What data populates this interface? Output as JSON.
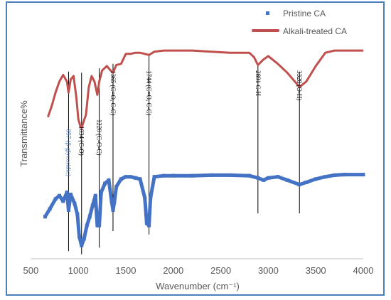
{
  "chart_data": {
    "type": "line",
    "title": "",
    "xlabel": "Wavenumber (cm⁻¹)",
    "ylabel": "Transmittance%",
    "xlim": [
      500,
      4000
    ],
    "x_ticks": [
      500,
      1000,
      1500,
      2000,
      2500,
      3000,
      3500,
      4000
    ],
    "y_ticks_shown": false,
    "grid": false,
    "legend": "top-right",
    "colors": {
      "frame": "#4a7ebb",
      "axis": "#bfbfbf",
      "annotation_line": "#000000"
    },
    "series": [
      {
        "name": "Pristine CA",
        "color": "#4472c4",
        "marker": "square",
        "points": [
          [
            650,
            38
          ],
          [
            700,
            45
          ],
          [
            760,
            54
          ],
          [
            800,
            57
          ],
          [
            840,
            52
          ],
          [
            880,
            60
          ],
          [
            897,
            44
          ],
          [
            920,
            58
          ],
          [
            960,
            50
          ],
          [
            990,
            40
          ],
          [
            1010,
            20
          ],
          [
            1034,
            12
          ],
          [
            1060,
            18
          ],
          [
            1090,
            30
          ],
          [
            1120,
            38
          ],
          [
            1150,
            48
          ],
          [
            1180,
            57
          ],
          [
            1200,
            30
          ],
          [
            1220,
            30
          ],
          [
            1240,
            60
          ],
          [
            1280,
            68
          ],
          [
            1320,
            71
          ],
          [
            1350,
            52
          ],
          [
            1365,
            44
          ],
          [
            1380,
            52
          ],
          [
            1400,
            65
          ],
          [
            1450,
            72
          ],
          [
            1500,
            74
          ],
          [
            1550,
            74
          ],
          [
            1600,
            73
          ],
          [
            1650,
            72
          ],
          [
            1700,
            55
          ],
          [
            1720,
            32
          ],
          [
            1744,
            30
          ],
          [
            1760,
            55
          ],
          [
            1800,
            74
          ],
          [
            1900,
            75
          ],
          [
            2000,
            75
          ],
          [
            2200,
            75
          ],
          [
            2400,
            75.5
          ],
          [
            2600,
            75.5
          ],
          [
            2800,
            75
          ],
          [
            2891,
            73
          ],
          [
            2950,
            71
          ],
          [
            3000,
            73
          ],
          [
            3100,
            74
          ],
          [
            3200,
            71
          ],
          [
            3328,
            67
          ],
          [
            3400,
            69
          ],
          [
            3500,
            72
          ],
          [
            3600,
            74
          ],
          [
            3700,
            75.5
          ],
          [
            3800,
            76
          ],
          [
            4000,
            76
          ]
        ]
      },
      {
        "name": "Alkali-treated CA",
        "color": "#c0504d",
        "marker": "none",
        "points": [
          [
            680,
            128
          ],
          [
            720,
            138
          ],
          [
            760,
            150
          ],
          [
            800,
            160
          ],
          [
            840,
            166
          ],
          [
            880,
            160
          ],
          [
            897,
            150
          ],
          [
            920,
            162
          ],
          [
            950,
            165
          ],
          [
            980,
            145
          ],
          [
            1000,
            126
          ],
          [
            1020,
            120
          ],
          [
            1034,
            118
          ],
          [
            1060,
            125
          ],
          [
            1080,
            130
          ],
          [
            1110,
            155
          ],
          [
            1140,
            165
          ],
          [
            1170,
            160
          ],
          [
            1200,
            148
          ],
          [
            1220,
            160
          ],
          [
            1250,
            170
          ],
          [
            1300,
            174
          ],
          [
            1340,
            170
          ],
          [
            1365,
            168
          ],
          [
            1400,
            175
          ],
          [
            1450,
            176
          ],
          [
            1500,
            185
          ],
          [
            1550,
            185
          ],
          [
            1600,
            186
          ],
          [
            1650,
            186
          ],
          [
            1700,
            185
          ],
          [
            1744,
            184
          ],
          [
            1800,
            187
          ],
          [
            1900,
            188
          ],
          [
            2000,
            188
          ],
          [
            2200,
            188
          ],
          [
            2400,
            187
          ],
          [
            2600,
            186
          ],
          [
            2800,
            186
          ],
          [
            2850,
            182
          ],
          [
            2891,
            175
          ],
          [
            2950,
            180
          ],
          [
            3000,
            183
          ],
          [
            3100,
            176
          ],
          [
            3200,
            168
          ],
          [
            3300,
            158
          ],
          [
            3328,
            155
          ],
          [
            3400,
            160
          ],
          [
            3500,
            174
          ],
          [
            3600,
            186
          ],
          [
            3700,
            188
          ],
          [
            3800,
            188
          ],
          [
            4000,
            188
          ]
        ]
      }
    ],
    "annotations": [
      {
        "x": 897,
        "label": "897 (β-glycosidic)",
        "color": "#4a7fc4",
        "line_top": 169,
        "line_bottom": 7,
        "text_at": 117
      },
      {
        "x": 1034,
        "label": "1034 (C-O)",
        "color": "#000000",
        "line_top": 168,
        "line_bottom": 4,
        "text_at": 120
      },
      {
        "x": 1220,
        "label": "1220 (C-O-C)",
        "color": "#000000",
        "line_top": 172,
        "line_bottom": 10,
        "text_at": 126
      },
      {
        "x": 1365,
        "label": "1365 (C=O, C-C)",
        "color": "#000000",
        "line_top": 176,
        "line_bottom": 25,
        "text_at": 170
      },
      {
        "x": 1744,
        "label": "1744 (C=O, C-C)",
        "color": "#000000",
        "line_top": 185,
        "line_bottom": 22,
        "text_at": 170
      },
      {
        "x": 2891,
        "label": "2891 C-H",
        "color": "#000000",
        "line_top": 176,
        "line_bottom": 41,
        "text_at": 170
      },
      {
        "x": 3328,
        "label": "3328 (O-H)",
        "color": "#000000",
        "line_top": 169,
        "line_bottom": 41,
        "text_at": 170
      }
    ]
  }
}
